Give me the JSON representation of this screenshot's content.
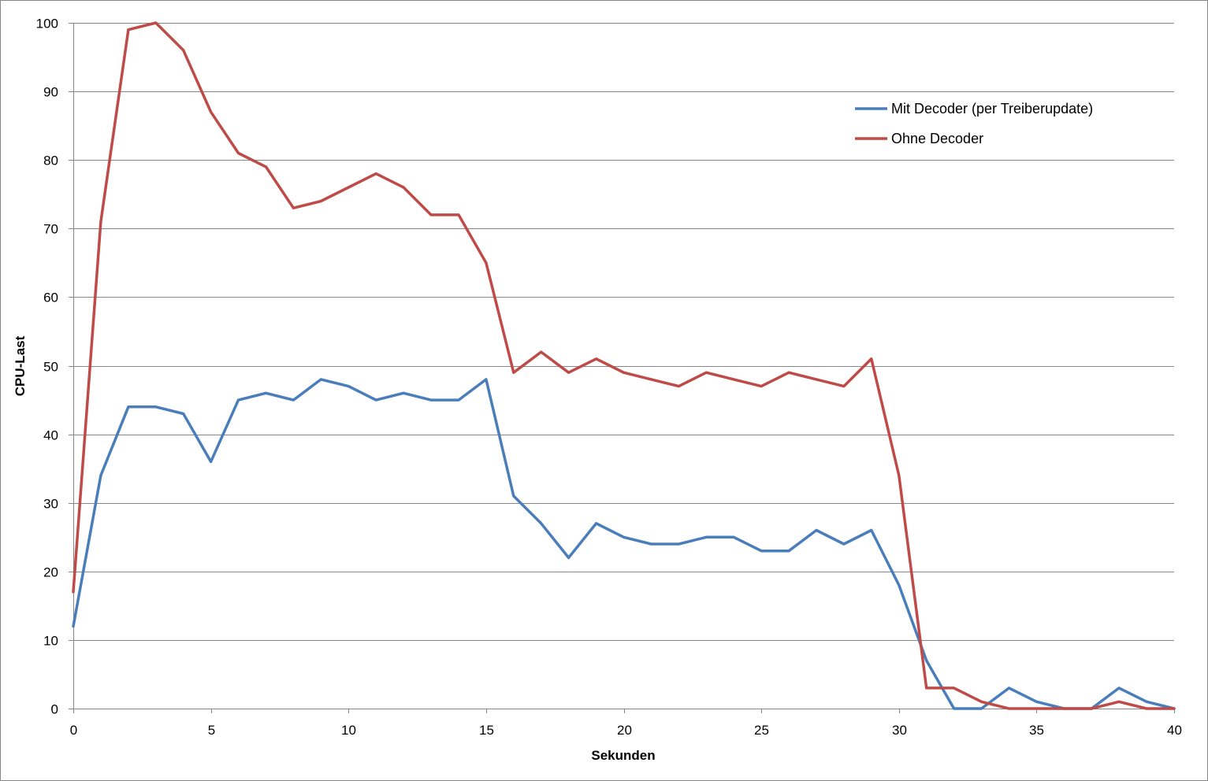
{
  "chart_data": {
    "type": "line",
    "xlabel": "Sekunden",
    "ylabel": "CPU-Last",
    "xlim": [
      0,
      40
    ],
    "ylim": [
      0,
      100
    ],
    "x_ticks": [
      0,
      5,
      10,
      15,
      20,
      25,
      30,
      35,
      40
    ],
    "y_ticks": [
      0,
      10,
      20,
      30,
      40,
      50,
      60,
      70,
      80,
      90,
      100
    ],
    "grid": "horizontal",
    "legend_position": "top-right",
    "x": [
      0,
      1,
      2,
      3,
      4,
      5,
      6,
      7,
      8,
      9,
      10,
      11,
      12,
      13,
      14,
      15,
      16,
      17,
      18,
      19,
      20,
      21,
      22,
      23,
      24,
      25,
      26,
      27,
      28,
      29,
      30,
      31,
      32,
      33,
      34,
      35,
      36,
      37,
      38,
      39,
      40
    ],
    "series": [
      {
        "name": "Mit Decoder (per Treiberupdate)",
        "color": "#4a7ebb",
        "values": [
          12,
          34,
          44,
          44,
          43,
          36,
          45,
          46,
          45,
          48,
          47,
          45,
          46,
          45,
          45,
          48,
          31,
          27,
          22,
          27,
          25,
          24,
          24,
          25,
          25,
          23,
          23,
          26,
          24,
          26,
          18,
          7,
          0,
          0,
          3,
          1,
          0,
          0,
          3,
          1,
          0
        ]
      },
      {
        "name": "Ohne Decoder",
        "color": "#be4b48",
        "values": [
          17,
          71,
          99,
          100,
          96,
          87,
          81,
          79,
          73,
          74,
          76,
          78,
          76,
          72,
          72,
          65,
          49,
          52,
          49,
          51,
          49,
          48,
          47,
          49,
          48,
          47,
          49,
          48,
          47,
          51,
          34,
          3,
          3,
          1,
          0,
          0,
          0,
          0,
          1,
          0,
          0
        ]
      }
    ]
  }
}
